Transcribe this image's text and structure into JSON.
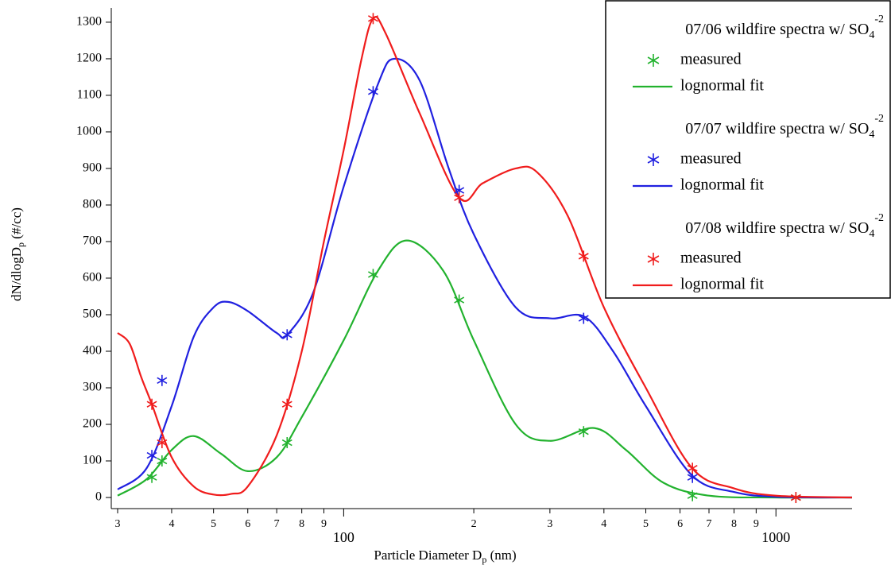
{
  "chart_data": {
    "type": "scatter_line",
    "x_label": {
      "main": "Particle Diameter D",
      "sub": "p",
      "tail": " (nm)"
    },
    "y_label": {
      "main": "dN/dlogD",
      "sub": "p",
      "tail": " (#/cc)"
    },
    "x_log": true,
    "xlim": [
      29,
      1500
    ],
    "ylim": [
      -13,
      1339
    ],
    "xticks": [
      {
        "value": 30,
        "label": "3"
      },
      {
        "value": 40,
        "label": "4"
      },
      {
        "value": 50,
        "label": "5"
      },
      {
        "value": 60,
        "label": "6"
      },
      {
        "value": 70,
        "label": "7"
      },
      {
        "value": 80,
        "label": "8"
      },
      {
        "value": 90,
        "label": "9"
      },
      100,
      {
        "value": 200,
        "label": "2"
      },
      {
        "value": 300,
        "label": "3"
      },
      {
        "value": 400,
        "label": "4"
      },
      {
        "value": 500,
        "label": "5"
      },
      {
        "value": 600,
        "label": "6"
      },
      {
        "value": 700,
        "label": "7"
      },
      {
        "value": 800,
        "label": "8"
      },
      {
        "value": 900,
        "label": "9"
      },
      1000
    ],
    "yticks": [
      0,
      100,
      200,
      300,
      400,
      500,
      600,
      700,
      800,
      900,
      1000,
      1100,
      1200,
      1300
    ],
    "legend": "upper right",
    "groups": [
      {
        "title": {
          "main": "07/06 wildfire spectra w/ SO",
          "sub": "4",
          "sup": "-2"
        },
        "series": [
          {
            "name": "measured",
            "type": "scatter",
            "color": "#22b22e",
            "x": [
              36,
              38,
              74,
              117,
              185,
              359,
              641,
              1112
            ],
            "values": [
              55,
              100,
              150,
              610,
              540,
              180,
              5,
              0
            ]
          },
          {
            "name": "lognormal fit",
            "type": "line",
            "color": "#22b22e",
            "x": [
              30,
              35,
              40,
              45,
              52,
              60,
              70,
              80,
              100,
              120,
              140,
              170,
              200,
              250,
              300,
              380,
              450,
              550,
              700,
              1000,
              1500
            ],
            "values": [
              5,
              50,
              130,
              168,
              120,
              72,
              110,
              220,
              430,
              620,
              703,
              620,
              430,
              200,
              155,
              190,
              130,
              40,
              5,
              0,
              0
            ]
          }
        ]
      },
      {
        "title": {
          "main": "07/07 wildfire spectra w/ SO",
          "sub": "4",
          "sup": "-2"
        },
        "series": [
          {
            "name": "measured",
            "type": "scatter",
            "color": "#2020e0",
            "x": [
              36,
              38,
              74,
              117,
              185,
              359,
              641
            ],
            "values": [
              115,
              320,
              445,
              1110,
              840,
              490,
              55
            ]
          },
          {
            "name": "lognormal fit",
            "type": "line",
            "color": "#2020e0",
            "x": [
              30,
              35,
              40,
              45,
              50,
              54,
              60,
              70,
              74,
              85,
              100,
              120,
              131,
              150,
              175,
              200,
              250,
              300,
              360,
              420,
              500,
              640,
              800,
              1000,
              1500
            ],
            "values": [
              22,
              80,
              250,
              440,
              520,
              535,
              510,
              450,
              445,
              560,
              850,
              1130,
              1200,
              1140,
              900,
              720,
              520,
              490,
              495,
              400,
              250,
              60,
              15,
              2,
              0
            ]
          }
        ]
      },
      {
        "title": {
          "main": "07/08 wildfire spectra w/ SO",
          "sub": "4",
          "sup": "-2"
        },
        "series": [
          {
            "name": "measured",
            "type": "scatter",
            "color": "#f01c1c",
            "x": [
              36,
              38,
              74,
              117,
              185,
              359,
              641,
              1112
            ],
            "values": [
              255,
              150,
              255,
              1310,
              820,
              660,
              80,
              0
            ]
          },
          {
            "name": "lognormal fit",
            "type": "line",
            "color": "#f01c1c",
            "x": [
              30,
              32,
              34,
              36,
              40,
              45,
              50,
              55,
              60,
              70,
              80,
              90,
              100,
              110,
              117,
              125,
              150,
              185,
              210,
              250,
              280,
              330,
              400,
              500,
              640,
              800,
              1000,
              1500
            ],
            "values": [
              450,
              420,
              330,
              255,
              110,
              30,
              8,
              10,
              30,
              170,
              400,
              700,
              950,
              1200,
              1310,
              1270,
              1050,
              820,
              860,
              900,
              890,
              770,
              520,
              300,
              80,
              25,
              5,
              0
            ]
          }
        ]
      }
    ]
  }
}
